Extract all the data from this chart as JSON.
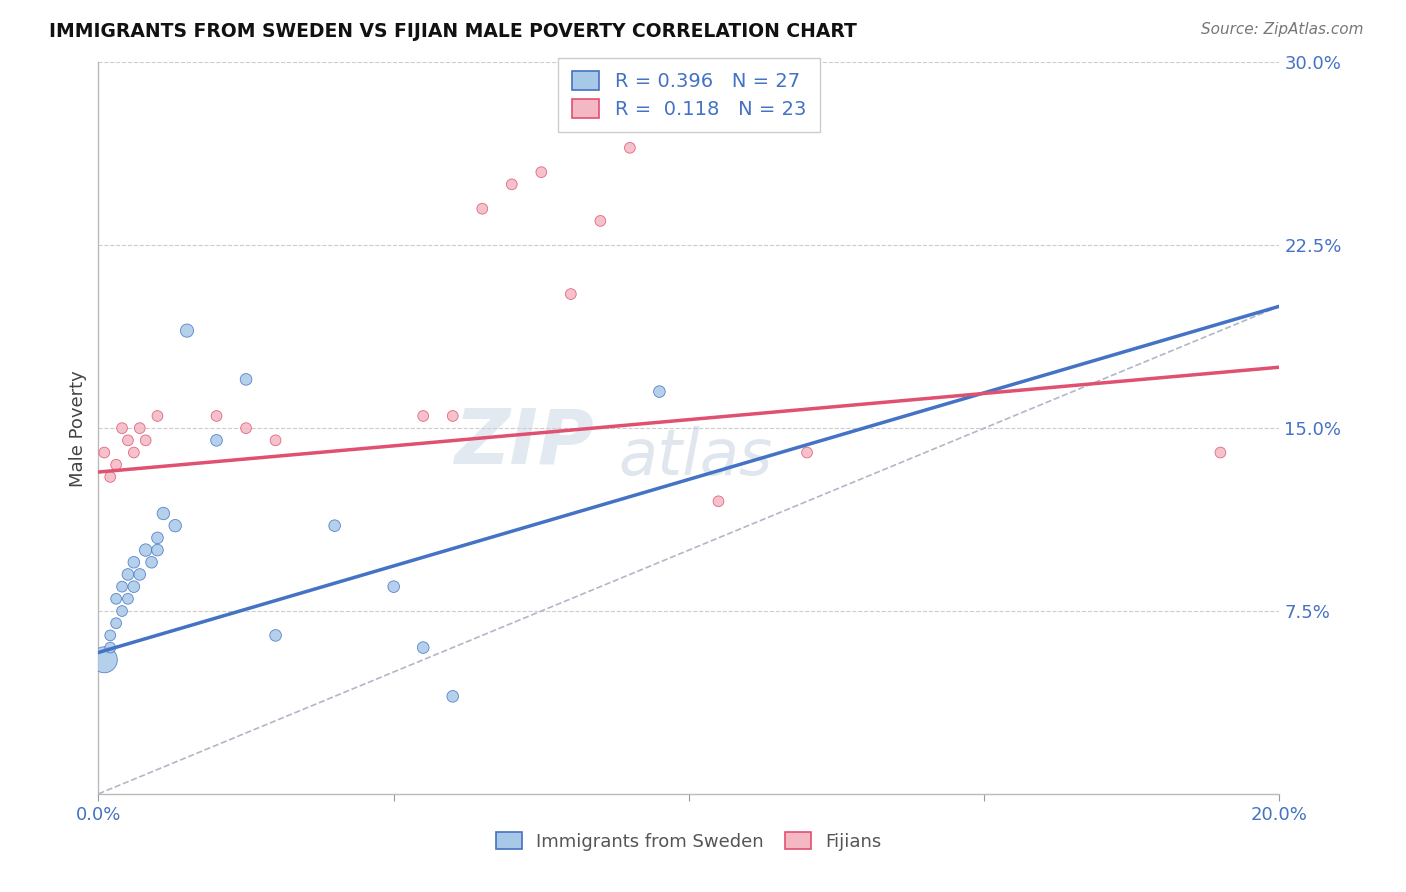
{
  "title": "IMMIGRANTS FROM SWEDEN VS FIJIAN MALE POVERTY CORRELATION CHART",
  "source": "Source: ZipAtlas.com",
  "ylabel": "Male Poverty",
  "xlim": [
    0.0,
    0.2
  ],
  "ylim": [
    0.0,
    0.3
  ],
  "xticks": [
    0.0,
    0.05,
    0.1,
    0.15,
    0.2
  ],
  "xtick_labels": [
    "0.0%",
    "",
    "",
    "",
    "20.0%"
  ],
  "ytick_labels": [
    "7.5%",
    "15.0%",
    "22.5%",
    "30.0%"
  ],
  "yticks": [
    0.075,
    0.15,
    0.225,
    0.3
  ],
  "r_sweden": 0.396,
  "n_sweden": 27,
  "r_fijian": 0.118,
  "n_fijian": 23,
  "color_sweden": "#a8c8e8",
  "color_fijian": "#f4b8c4",
  "color_sweden_line": "#4472c4",
  "color_fijian_line": "#e05070",
  "color_diag": "#b0b8c8",
  "sweden_x": [
    0.001,
    0.002,
    0.002,
    0.003,
    0.003,
    0.004,
    0.004,
    0.005,
    0.005,
    0.006,
    0.006,
    0.007,
    0.008,
    0.009,
    0.01,
    0.01,
    0.011,
    0.013,
    0.015,
    0.02,
    0.025,
    0.03,
    0.04,
    0.05,
    0.055,
    0.06,
    0.095
  ],
  "sweden_y": [
    0.055,
    0.06,
    0.065,
    0.07,
    0.08,
    0.075,
    0.085,
    0.08,
    0.09,
    0.085,
    0.095,
    0.09,
    0.1,
    0.095,
    0.105,
    0.1,
    0.115,
    0.11,
    0.19,
    0.145,
    0.17,
    0.065,
    0.11,
    0.085,
    0.06,
    0.04,
    0.165
  ],
  "sweden_s": [
    350,
    60,
    60,
    60,
    60,
    60,
    60,
    60,
    70,
    70,
    70,
    70,
    80,
    70,
    70,
    70,
    80,
    80,
    90,
    70,
    70,
    70,
    70,
    70,
    70,
    70,
    70
  ],
  "fijian_x": [
    0.001,
    0.002,
    0.003,
    0.004,
    0.005,
    0.006,
    0.007,
    0.008,
    0.01,
    0.02,
    0.025,
    0.03,
    0.055,
    0.06,
    0.065,
    0.07,
    0.075,
    0.08,
    0.085,
    0.09,
    0.105,
    0.12,
    0.19
  ],
  "fijian_y": [
    0.14,
    0.13,
    0.135,
    0.15,
    0.145,
    0.14,
    0.15,
    0.145,
    0.155,
    0.155,
    0.15,
    0.145,
    0.155,
    0.155,
    0.24,
    0.25,
    0.255,
    0.205,
    0.235,
    0.265,
    0.12,
    0.14,
    0.14
  ],
  "fijian_s": [
    60,
    60,
    60,
    60,
    60,
    60,
    60,
    60,
    60,
    60,
    60,
    60,
    60,
    60,
    60,
    60,
    60,
    60,
    60,
    60,
    60,
    60,
    60
  ],
  "watermark_text": "ZIP",
  "watermark_text2": "atlas",
  "background_color": "#ffffff",
  "grid_color": "#cccccc"
}
